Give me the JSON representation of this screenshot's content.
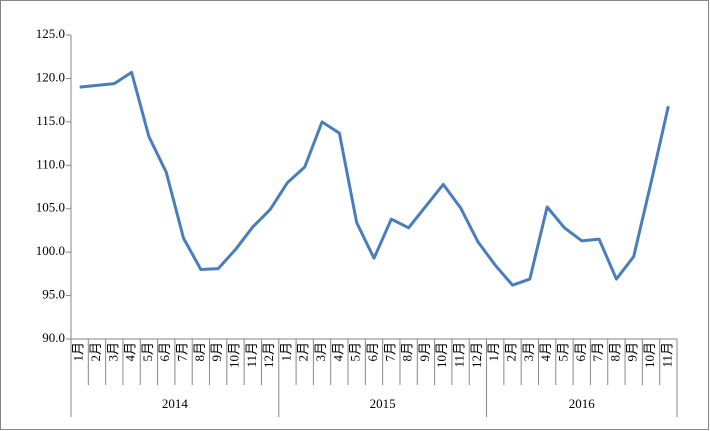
{
  "chart_data": {
    "type": "line",
    "color": "#4a7ebb",
    "grid": false,
    "groups": [
      {
        "label": "2014",
        "categories": [
          "1月",
          "2月",
          "3月",
          "4月",
          "5月",
          "6月",
          "7月",
          "8月",
          "9月",
          "10月",
          "11月",
          "12月"
        ]
      },
      {
        "label": "2015",
        "categories": [
          "1月",
          "2月",
          "3月",
          "4月",
          "5月",
          "6月",
          "7月",
          "8月",
          "9月",
          "10月",
          "11月",
          "12月"
        ]
      },
      {
        "label": "2016",
        "categories": [
          "1月",
          "2月",
          "3月",
          "4月",
          "5月",
          "6月",
          "7月",
          "8月",
          "9月",
          "10月",
          "11月"
        ]
      }
    ],
    "values": [
      119.0,
      119.2,
      119.4,
      120.7,
      113.3,
      109.2,
      101.6,
      98.0,
      98.1,
      100.3,
      102.9,
      104.9,
      108.0,
      109.8,
      115.0,
      113.7,
      103.4,
      99.3,
      103.8,
      102.8,
      105.3,
      107.8,
      105.1,
      101.2,
      98.5,
      96.2,
      96.9,
      105.2,
      102.8,
      101.3,
      101.5,
      96.9,
      99.5,
      108.0,
      116.8
    ],
    "ylim": [
      90,
      125
    ],
    "yticks": [
      {
        "value": 90,
        "label": "90.0"
      },
      {
        "value": 95,
        "label": "95.0"
      },
      {
        "value": 100,
        "label": "100.0"
      },
      {
        "value": 105,
        "label": "105.0"
      },
      {
        "value": 110,
        "label": "110.0"
      },
      {
        "value": 115,
        "label": "115.0"
      },
      {
        "value": 120,
        "label": "120.0"
      },
      {
        "value": 125,
        "label": "125.0"
      }
    ]
  }
}
